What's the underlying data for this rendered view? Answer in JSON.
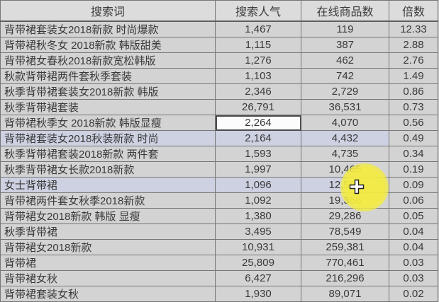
{
  "table": {
    "headers": [
      "搜索词",
      "搜索人气",
      "在线商品数",
      "倍数"
    ],
    "rows": [
      {
        "keyword": "背带裙套装女2018新款 时尚爆款",
        "popularity": "1,467",
        "products": "119",
        "ratio": "12.33",
        "state": "normal"
      },
      {
        "keyword": "背带裙秋冬女 2018新款 韩版甜美",
        "popularity": "1,115",
        "products": "387",
        "ratio": "2.88",
        "state": "normal"
      },
      {
        "keyword": "背带裙女春秋2018新款宽松韩版",
        "popularity": "1,276",
        "products": "462",
        "ratio": "2.76",
        "state": "normal"
      },
      {
        "keyword": "秋款背带裙两件套秋季套装",
        "popularity": "1,103",
        "products": "742",
        "ratio": "1.49",
        "state": "normal"
      },
      {
        "keyword": "秋季背带裙套装女2018新款 韩版",
        "popularity": "2,346",
        "products": "2,729",
        "ratio": "0.86",
        "state": "normal"
      },
      {
        "keyword": "秋季背带裙套装",
        "popularity": "26,791",
        "products": "36,531",
        "ratio": "0.73",
        "state": "normal"
      },
      {
        "keyword": "背带裙秋季女 2018新款 韩版显瘦",
        "popularity": "2,264",
        "products": "4,070",
        "ratio": "0.56",
        "state": "active"
      },
      {
        "keyword": "背带裙套装女2018秋装新款 时尚",
        "popularity": "2,164",
        "products": "4,432",
        "ratio": "0.49",
        "state": "selected"
      },
      {
        "keyword": "秋季背带裙套装2018新款 两件套",
        "popularity": "1,593",
        "products": "4,735",
        "ratio": "0.34",
        "state": "normal"
      },
      {
        "keyword": "秋季背带裙女长款2018新款",
        "popularity": "1,997",
        "products": "10,465",
        "ratio": "0.19",
        "state": "normal"
      },
      {
        "keyword": "女士背带裙",
        "popularity": "1,096",
        "products": "12,596",
        "ratio": "0.09",
        "state": "selected"
      },
      {
        "keyword": "背带裙两件套女秋季2018新款",
        "popularity": "1,092",
        "products": "19,368",
        "ratio": "0.06",
        "state": "normal"
      },
      {
        "keyword": "背带裙女2018新款 韩版 显瘦",
        "popularity": "1,380",
        "products": "29,286",
        "ratio": "0.05",
        "state": "normal"
      },
      {
        "keyword": "秋季背带裙",
        "popularity": "3,495",
        "products": "78,549",
        "ratio": "0.04",
        "state": "normal"
      },
      {
        "keyword": "背带裙女2018新款",
        "popularity": "10,931",
        "products": "259,381",
        "ratio": "0.04",
        "state": "normal"
      },
      {
        "keyword": "背带裙",
        "popularity": "25,809",
        "products": "770,461",
        "ratio": "0.03",
        "state": "normal"
      },
      {
        "keyword": "背带裙女秋",
        "popularity": "6,427",
        "products": "216,296",
        "ratio": "0.03",
        "state": "normal"
      },
      {
        "keyword": "背带裙套装女秋",
        "popularity": "1,930",
        "products": "89,071",
        "ratio": "0.02",
        "state": "normal"
      }
    ]
  },
  "cursor": {
    "type": "excel-cell-cross",
    "highlight_color": "#f4ec3f"
  },
  "colors": {
    "header_bg": "#dcdcdc",
    "row_bg": "#d3d3d3",
    "selected_row_bg": "#cdd1e1",
    "active_cell_bg": "#fcfcfc",
    "grid_border": "#767676",
    "text": "#3a3a3a",
    "click_highlight": "#f4ec3f"
  }
}
